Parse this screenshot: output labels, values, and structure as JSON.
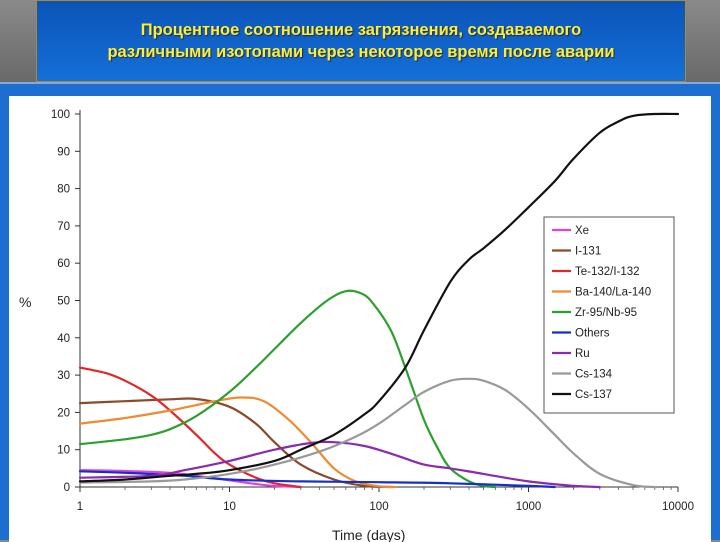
{
  "title": "Процентное соотношение загрязнения, создаваемого\nразличными изотопами через некоторое время после аварии",
  "chart_data": {
    "type": "line",
    "xscale": "log",
    "xlim": [
      1,
      10000
    ],
    "ylim": [
      0,
      100
    ],
    "xlabel": "Time (days)",
    "ylabel": "%",
    "xticks": [
      "1",
      "10",
      "100",
      "1000",
      "10000"
    ],
    "yticks": [
      "0",
      "10",
      "20",
      "30",
      "40",
      "50",
      "60",
      "70",
      "80",
      "90",
      "100"
    ],
    "grid": false,
    "legend_position": "right",
    "series": [
      {
        "name": "Xe",
        "color": "#e040e0",
        "points": [
          [
            1,
            4.5
          ],
          [
            2,
            4.3
          ],
          [
            4,
            3.8
          ],
          [
            6,
            3
          ],
          [
            10,
            1.8
          ],
          [
            15,
            0.8
          ],
          [
            20,
            0.3
          ],
          [
            30,
            0
          ]
        ]
      },
      {
        "name": "I-131",
        "color": "#8b4a2b",
        "points": [
          [
            1,
            22.5
          ],
          [
            2,
            23
          ],
          [
            4,
            23.5
          ],
          [
            6,
            23.6
          ],
          [
            10,
            21.5
          ],
          [
            15,
            17
          ],
          [
            20,
            12
          ],
          [
            30,
            6
          ],
          [
            50,
            2
          ],
          [
            80,
            0.3
          ],
          [
            120,
            0
          ]
        ]
      },
      {
        "name": "Te-132/I-132",
        "color": "#e02828",
        "points": [
          [
            1,
            32
          ],
          [
            1.5,
            30.5
          ],
          [
            2,
            28.5
          ],
          [
            3,
            24.5
          ],
          [
            4,
            20.5
          ],
          [
            6,
            14
          ],
          [
            8,
            9
          ],
          [
            10,
            6
          ],
          [
            15,
            2.5
          ],
          [
            20,
            1
          ],
          [
            30,
            0
          ]
        ]
      },
      {
        "name": "Ba-140/La-140",
        "color": "#f08a30",
        "points": [
          [
            1,
            17
          ],
          [
            2,
            18.5
          ],
          [
            4,
            20.5
          ],
          [
            8,
            23
          ],
          [
            12,
            24
          ],
          [
            17,
            23
          ],
          [
            25,
            18
          ],
          [
            35,
            12
          ],
          [
            50,
            5
          ],
          [
            70,
            1.5
          ],
          [
            100,
            0.2
          ],
          [
            130,
            0
          ]
        ]
      },
      {
        "name": "Zr-95/Nb-95",
        "color": "#2ca02c",
        "points": [
          [
            1,
            11.5
          ],
          [
            2,
            12.8
          ],
          [
            3,
            14
          ],
          [
            4,
            15.5
          ],
          [
            6,
            19
          ],
          [
            10,
            25.5
          ],
          [
            15,
            32
          ],
          [
            20,
            37
          ],
          [
            30,
            44
          ],
          [
            45,
            50
          ],
          [
            60,
            52.5
          ],
          [
            75,
            52
          ],
          [
            90,
            49.5
          ],
          [
            120,
            42
          ],
          [
            150,
            32
          ],
          [
            200,
            18
          ],
          [
            250,
            10
          ],
          [
            300,
            5
          ],
          [
            400,
            1.5
          ],
          [
            500,
            0.3
          ],
          [
            600,
            0
          ]
        ]
      },
      {
        "name": "Others",
        "color": "#1530c8",
        "points": [
          [
            1,
            4.2
          ],
          [
            2,
            3.8
          ],
          [
            5,
            3
          ],
          [
            10,
            2
          ],
          [
            30,
            1.5
          ],
          [
            100,
            1.3
          ],
          [
            300,
            1
          ],
          [
            1000,
            0.3
          ],
          [
            1500,
            0
          ]
        ]
      },
      {
        "name": "Ru",
        "color": "#8a2ab0",
        "points": [
          [
            1,
            2.5
          ],
          [
            3,
            3
          ],
          [
            5,
            4.5
          ],
          [
            10,
            7
          ],
          [
            20,
            10
          ],
          [
            35,
            11.8
          ],
          [
            50,
            12
          ],
          [
            80,
            11
          ],
          [
            130,
            8.5
          ],
          [
            200,
            6
          ],
          [
            300,
            5
          ],
          [
            500,
            3.5
          ],
          [
            1000,
            1.5
          ],
          [
            2000,
            0.3
          ],
          [
            3000,
            0
          ]
        ]
      },
      {
        "name": "Cs-134",
        "color": "#999999",
        "points": [
          [
            1,
            1.2
          ],
          [
            3,
            1.5
          ],
          [
            5,
            2
          ],
          [
            10,
            3.5
          ],
          [
            20,
            6
          ],
          [
            40,
            9.5
          ],
          [
            70,
            13.5
          ],
          [
            100,
            17
          ],
          [
            150,
            22
          ],
          [
            200,
            25.5
          ],
          [
            300,
            28.5
          ],
          [
            400,
            29
          ],
          [
            500,
            28.5
          ],
          [
            700,
            26
          ],
          [
            1000,
            21
          ],
          [
            1500,
            14
          ],
          [
            2000,
            9
          ],
          [
            3000,
            3.5
          ],
          [
            5000,
            0.5
          ],
          [
            7000,
            0
          ]
        ]
      },
      {
        "name": "Cs-137",
        "color": "#111111",
        "points": [
          [
            1,
            1.5
          ],
          [
            2,
            2
          ],
          [
            4,
            3
          ],
          [
            6,
            3.5
          ],
          [
            10,
            4.5
          ],
          [
            20,
            7
          ],
          [
            30,
            10
          ],
          [
            50,
            14
          ],
          [
            80,
            19.5
          ],
          [
            100,
            23
          ],
          [
            150,
            32
          ],
          [
            200,
            42
          ],
          [
            300,
            55
          ],
          [
            400,
            61
          ],
          [
            500,
            64
          ],
          [
            700,
            69
          ],
          [
            1000,
            75
          ],
          [
            1500,
            82
          ],
          [
            2000,
            88
          ],
          [
            3000,
            95
          ],
          [
            4000,
            98
          ],
          [
            5000,
            99.5
          ],
          [
            7000,
            100
          ],
          [
            10000,
            100
          ]
        ]
      }
    ]
  }
}
